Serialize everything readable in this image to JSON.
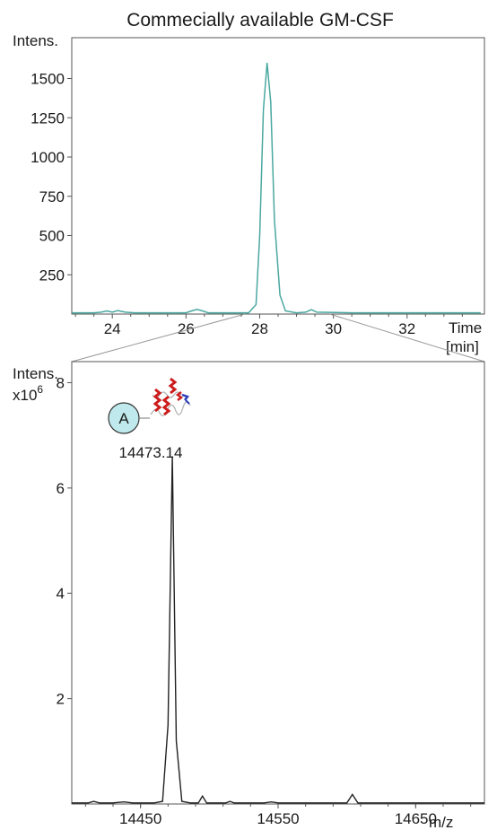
{
  "title": "Commecially available GM-CSF",
  "chromatogram": {
    "ylabel": "Intens.",
    "xlabel": "Time",
    "xunit": "[min]",
    "xlim": [
      22.9,
      34.1
    ],
    "ylim": [
      0,
      1760
    ],
    "yticks": [
      250,
      500,
      750,
      1000,
      1250,
      1500
    ],
    "xticks": [
      24,
      26,
      28,
      30,
      32
    ],
    "trace_color": "#4aa8a0"
  },
  "zoom_region_min": [
    27.6,
    29.9
  ],
  "spectrum": {
    "ylabel": "Intens.",
    "yscale_label": "x10",
    "yscale_exp": "6",
    "xlabel": "m/z",
    "xlim": [
      14400,
      14700
    ],
    "ylim": [
      0,
      8.4
    ],
    "yticks": [
      2,
      4,
      6,
      8
    ],
    "xticks": [
      14450,
      14550,
      14650
    ],
    "trace_color": "#222222",
    "peak_label": "14473.14",
    "peak_badge": "A",
    "badge_color": "#bfe9ec",
    "protein_icon": "protein-structure-icon"
  },
  "chart_data": [
    {
      "type": "line",
      "title": "Commecially available GM-CSF",
      "xlabel": "Time [min]",
      "ylabel": "Intens.",
      "x": [
        22.9,
        23.5,
        23.7,
        23.85,
        24.0,
        24.15,
        24.35,
        24.6,
        26.0,
        26.15,
        26.3,
        26.45,
        26.6,
        27.7,
        27.9,
        28.0,
        28.1,
        28.2,
        28.3,
        28.4,
        28.55,
        28.7,
        29.0,
        29.25,
        29.4,
        29.55,
        30.5,
        34.0
      ],
      "series": [
        {
          "values": [
            8,
            8,
            12,
            20,
            12,
            22,
            12,
            8,
            8,
            20,
            30,
            20,
            8,
            8,
            60,
            500,
            1300,
            1600,
            1350,
            600,
            120,
            20,
            8,
            12,
            28,
            12,
            8,
            8
          ]
        }
      ],
      "xlim": [
        22.9,
        34.1
      ],
      "ylim": [
        0,
        1760
      ]
    },
    {
      "type": "line",
      "title": "",
      "xlabel": "m/z",
      "ylabel": "Intens. x10^6",
      "x": [
        14400,
        14412,
        14416,
        14420,
        14430,
        14438,
        14444,
        14452,
        14460,
        14466,
        14470,
        14473.14,
        14476,
        14480,
        14486,
        14492,
        14495,
        14498,
        14505,
        14512,
        14515,
        14518,
        14530,
        14540,
        14545,
        14550,
        14580,
        14600,
        14604,
        14608,
        14620,
        14700
      ],
      "series": [
        {
          "values": [
            0.02,
            0.02,
            0.05,
            0.02,
            0.02,
            0.04,
            0.02,
            0.02,
            0.02,
            0.05,
            1.5,
            6.6,
            1.2,
            0.05,
            0.02,
            0.02,
            0.15,
            0.02,
            0.02,
            0.02,
            0.05,
            0.02,
            0.02,
            0.02,
            0.04,
            0.02,
            0.02,
            0.02,
            0.18,
            0.02,
            0.02,
            0.02
          ]
        }
      ],
      "xlim": [
        14400,
        14700
      ],
      "ylim": [
        0,
        8.4
      ],
      "annotations": [
        "14473.14"
      ]
    }
  ]
}
